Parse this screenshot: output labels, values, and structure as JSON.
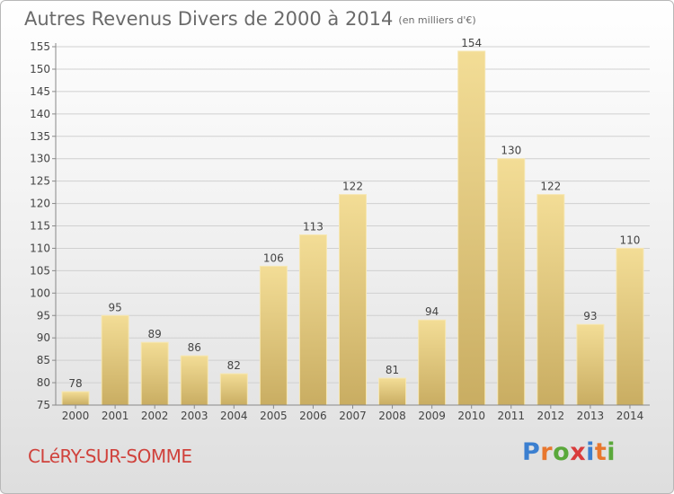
{
  "title": "Autres Revenus Divers de 2000 à 2014",
  "subtitle": "(en milliers d'€)",
  "commune": "CLéRY-SUR-SOMME",
  "logo": {
    "text": "Proxiti",
    "colors": [
      "#3b7fd0",
      "#e8772e",
      "#5aa83b",
      "#d93c3c",
      "#3b7fd0",
      "#e8772e",
      "#5aa83b"
    ]
  },
  "colors": {
    "title": "#6a6a6a",
    "commune": "#d0423c",
    "bar": "#e9cf7f"
  },
  "chart_data": {
    "type": "bar",
    "categories": [
      "2000",
      "2001",
      "2002",
      "2003",
      "2004",
      "2005",
      "2006",
      "2007",
      "2008",
      "2009",
      "2010",
      "2011",
      "2012",
      "2013",
      "2014"
    ],
    "values": [
      78,
      95,
      89,
      86,
      82,
      106,
      113,
      122,
      81,
      94,
      154,
      130,
      122,
      93,
      110
    ],
    "ylim": [
      75,
      155
    ],
    "yticks": [
      75,
      80,
      85,
      90,
      95,
      100,
      105,
      110,
      115,
      120,
      125,
      130,
      135,
      140,
      145,
      150,
      155
    ],
    "grid": true,
    "data_labels": true
  }
}
